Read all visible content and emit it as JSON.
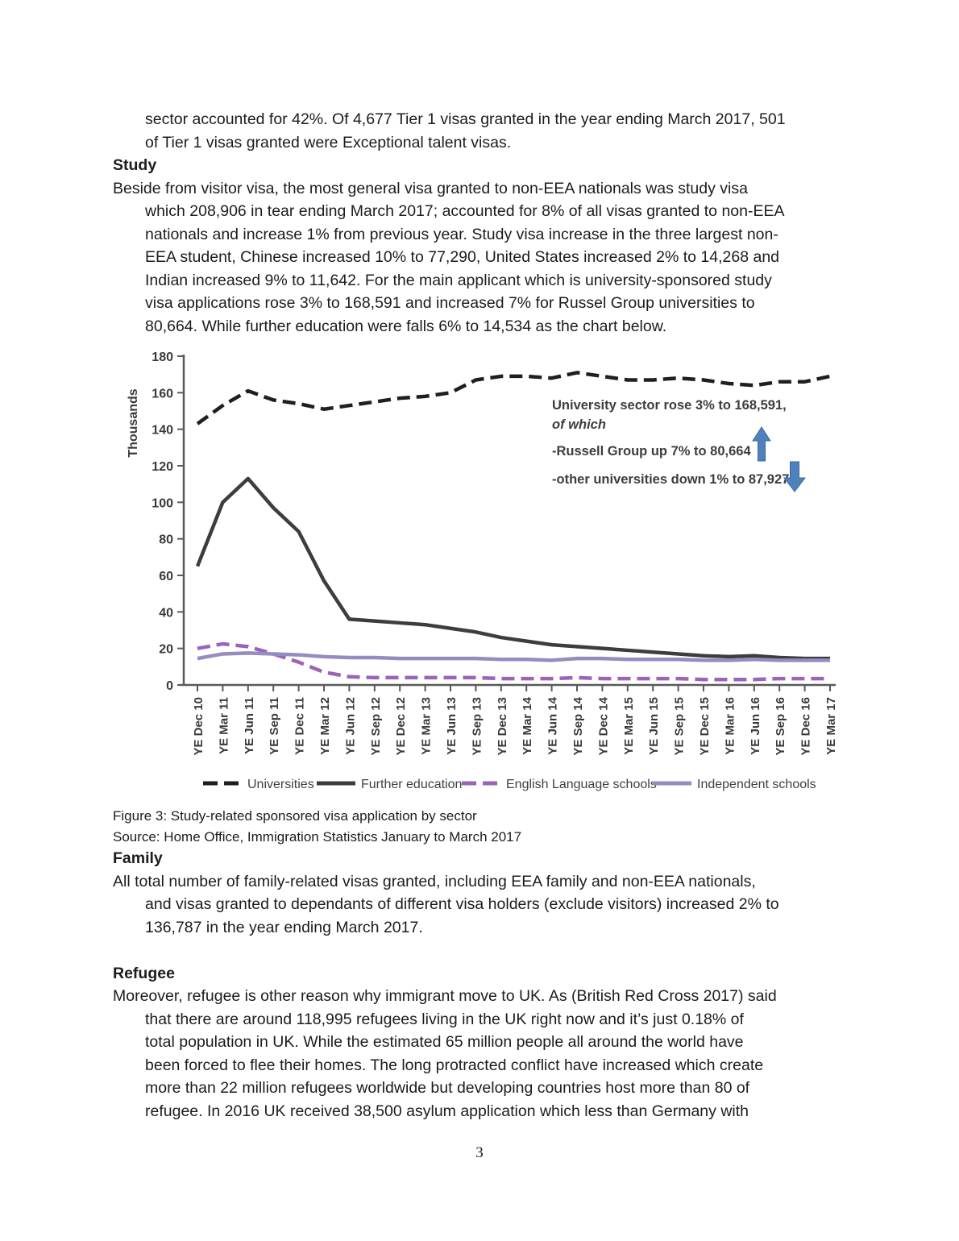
{
  "document": {
    "intro_paragraph_lines": [
      "sector accounted for 42%. Of 4,677 Tier 1 visas granted in the year ending March 2017, 501",
      "of Tier 1 visas granted were Exceptional talent visas."
    ],
    "heading_study": "Study",
    "study_paragraph_lines": [
      "Beside from visitor visa, the most general visa granted to non-EEA nationals was study visa",
      "which 208,906 in tear ending March 2017; accounted for 8% of all visas granted to non-EEA",
      "nationals and increase 1% from previous year. Study visa increase in the three largest non-",
      "EEA student, Chinese increased 10% to 77,290, United States increased 2% to 14,268 and",
      "Indian increased 9% to 11,642. For the main applicant which is university-sponsored study",
      "visa applications rose 3% to 168,591 and increased 7% for Russel Group universities to",
      "80,664. While further education were falls 6% to 14,534 as the chart below."
    ],
    "figure_caption": "Figure 3: Study-related sponsored visa application by sector",
    "figure_source": "Source: Home Office, Immigration Statistics January to March 2017",
    "heading_family": "Family",
    "family_paragraph_lines": [
      "All total number of family-related visas granted, including EEA family and non-EEA nationals,",
      "and visas granted to dependants of different visa holders (exclude visitors) increased 2% to",
      "136,787 in the year ending March 2017."
    ],
    "heading_refugee": "Refugee",
    "refugee_paragraph_lines": [
      "Moreover, refugee is other reason why immigrant move to UK. As (British Red Cross 2017) said",
      "that there are around 118,995 refugees living in the UK right now and it’s just 0.18% of",
      "total population in UK. While the estimated 65 million people all around the world have",
      "been forced to flee their homes. The long protracted conflict have increased which create",
      "more than 22 million refugees worldwide but developing countries host more than 80 of",
      "refugee. In 2016 UK received 38,500 asylum application which less than Germany with"
    ],
    "page_number": "3"
  },
  "chart_data": {
    "type": "line",
    "title": "",
    "xlabel": "",
    "ylabel": "Thousands",
    "ylim": [
      0,
      180
    ],
    "ytick_step": 20,
    "grid": false,
    "legend_position": "bottom",
    "axis_color": "#595959",
    "categories": [
      "YE Dec 10",
      "YE Mar 11",
      "YE Jun 11",
      "YE Sep 11",
      "YE Dec 11",
      "YE Mar 12",
      "YE Jun 12",
      "YE Sep 12",
      "YE Dec 12",
      "YE Mar 13",
      "YE Jun 13",
      "YE Sep 13",
      "YE Dec 13",
      "YE Mar 14",
      "YE Jun 14",
      "YE Sep 14",
      "YE Dec 14",
      "YE Mar 15",
      "YE Jun 15",
      "YE Sep 15",
      "YE Dec 15",
      "YE Mar 16",
      "YE Jun 16",
      "YE Sep 16",
      "YE Dec 16",
      "YE Mar 17"
    ],
    "series": [
      {
        "name": "Universities",
        "color": "#1f1f1f",
        "style": "dashed",
        "values": [
          143,
          153,
          161,
          156,
          154,
          151,
          153,
          155,
          157,
          158,
          160,
          167,
          169,
          169,
          168,
          171,
          169,
          167,
          167,
          168,
          167,
          165,
          164,
          166,
          166,
          169
        ]
      },
      {
        "name": "Further education",
        "color": "#3d3d3d",
        "style": "solid",
        "values": [
          65,
          100,
          113,
          97,
          84,
          57,
          36,
          35,
          34,
          33,
          31,
          29,
          26,
          24,
          22,
          21,
          20,
          19,
          18,
          17,
          16,
          15.5,
          16,
          15,
          14.5,
          14.5
        ]
      },
      {
        "name": "English Language schools",
        "color": "#9c64b8",
        "style": "dashed",
        "values": [
          20,
          22.5,
          21,
          17,
          12.5,
          7,
          4.5,
          4,
          4,
          4,
          4,
          4,
          3.5,
          3.5,
          3.5,
          4,
          3.5,
          3.5,
          3.5,
          3.5,
          3,
          3,
          3,
          3.5,
          3.5,
          3.5
        ]
      },
      {
        "name": "Independent schools",
        "color": "#968cc0",
        "style": "solid",
        "values": [
          14.5,
          17,
          17.5,
          17,
          16.5,
          15.5,
          15,
          15,
          14.5,
          14.5,
          14.5,
          14.5,
          14,
          14,
          13.5,
          14.5,
          14.5,
          14,
          14,
          14,
          13.5,
          13.5,
          14,
          13.5,
          13.5,
          13.5
        ]
      }
    ],
    "annotation": {
      "line1": "University sector rose 3% to 168,591,",
      "line2": "of which",
      "line3": "-Russell Group up 7% to 80,664",
      "line4": "-other universities down 1% to 87,927",
      "arrow_color": "#4f81bd",
      "arrow_stroke": "#3a6aa0"
    }
  }
}
